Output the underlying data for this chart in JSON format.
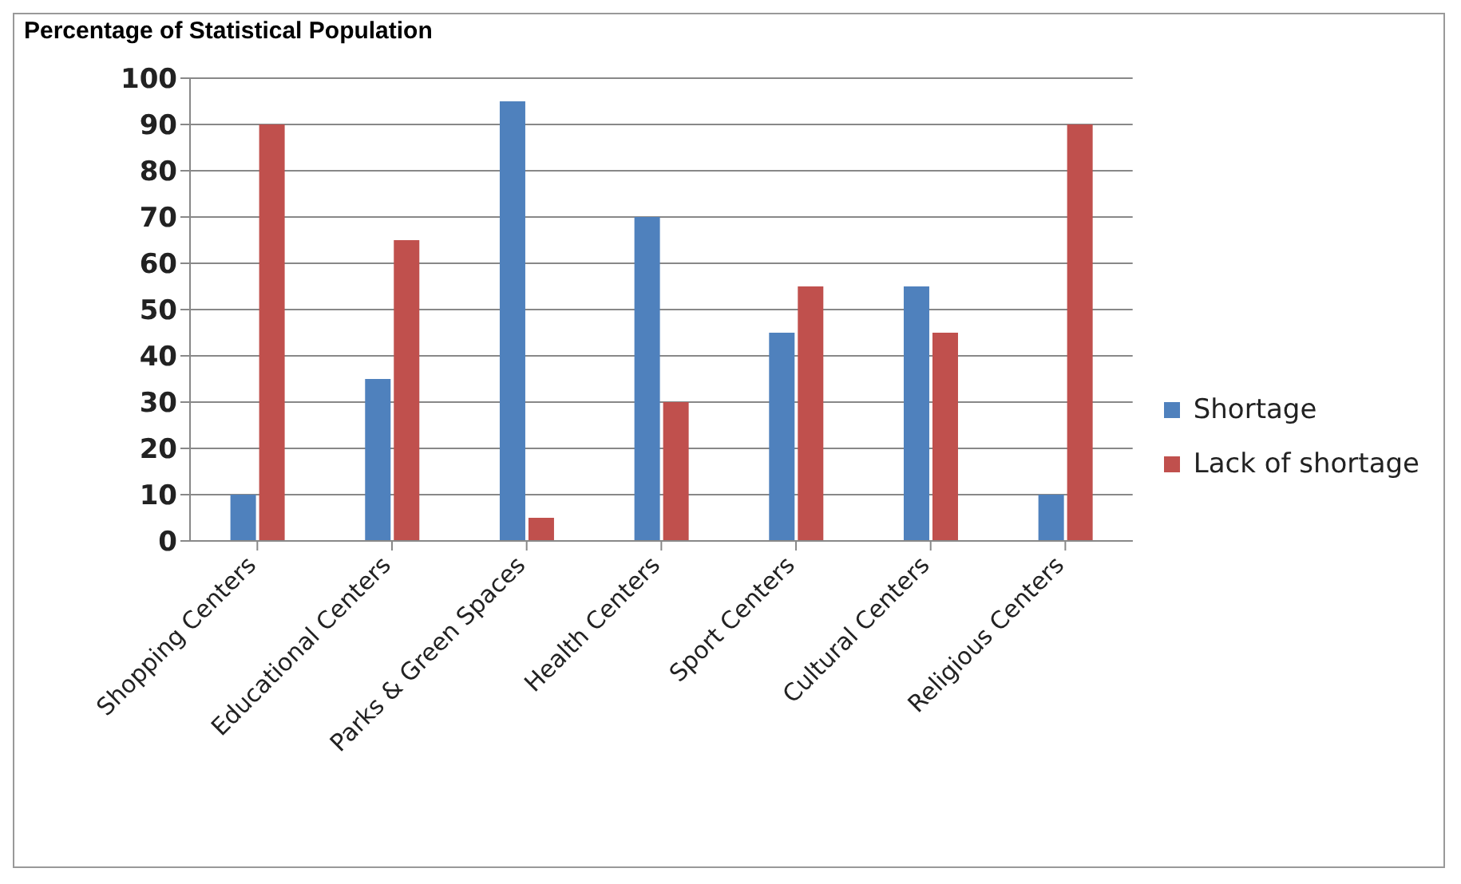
{
  "chart_data": {
    "type": "bar",
    "ylabel": "Percentage of Statistical Population",
    "categories": [
      "Shopping Centers",
      "Educational Centers",
      "Parks & Green Spaces",
      "Health Centers",
      "Sport Centers",
      "Cultural Centers",
      "Religious Centers"
    ],
    "series": [
      {
        "name": "Shortage",
        "color": "#4f81bd",
        "values": [
          10,
          35,
          95,
          70,
          45,
          55,
          10
        ]
      },
      {
        "name": "Lack of shortage",
        "color": "#c0504d",
        "values": [
          90,
          65,
          5,
          30,
          55,
          45,
          90
        ]
      }
    ],
    "ylim": [
      0,
      100
    ],
    "yticks": [
      0,
      10,
      20,
      30,
      40,
      50,
      60,
      70,
      80,
      90,
      100
    ],
    "grid": "y",
    "legend": "right"
  }
}
